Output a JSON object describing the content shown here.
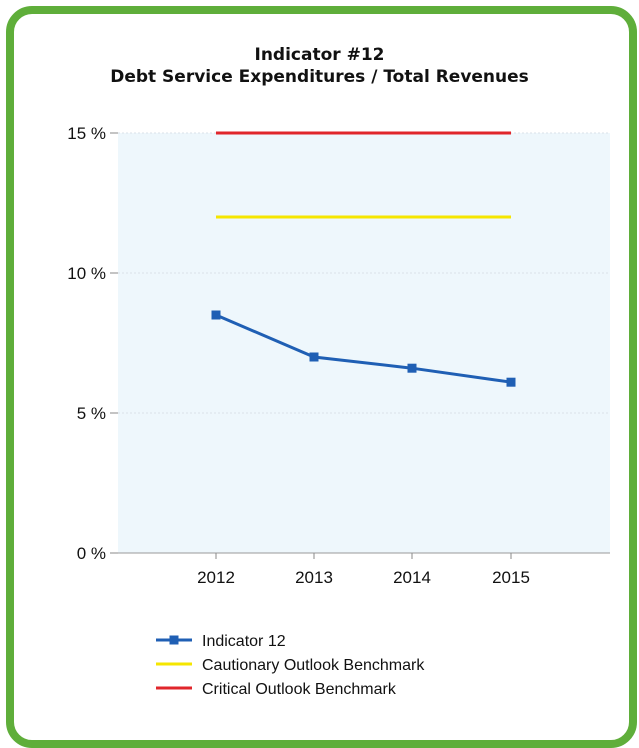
{
  "chart_data": {
    "type": "line",
    "title": "Indicator #12",
    "subtitle": "Debt Service Expenditures / Total Revenues",
    "categories": [
      "2012",
      "2013",
      "2014",
      "2015"
    ],
    "ylim": [
      0,
      15
    ],
    "y_ticks": [
      0,
      5,
      10,
      15
    ],
    "y_tick_labels": [
      "0 %",
      "5 %",
      "10 %",
      "15 %"
    ],
    "grid": true,
    "legend_position": "bottom-left",
    "series": [
      {
        "name": "Indicator 12",
        "values": [
          8.5,
          7.0,
          6.6,
          6.1
        ],
        "color": "#1f5fb4",
        "marker": "square"
      },
      {
        "name": "Cautionary Outlook Benchmark",
        "values": [
          12,
          12,
          12,
          12
        ],
        "color": "#f5e600"
      },
      {
        "name": "Critical Outlook Benchmark",
        "values": [
          15,
          15,
          15,
          15
        ],
        "color": "#e0262b"
      }
    ]
  },
  "colors": {
    "frame": "#5fae3a",
    "plot_bg": "#eef7fc"
  }
}
